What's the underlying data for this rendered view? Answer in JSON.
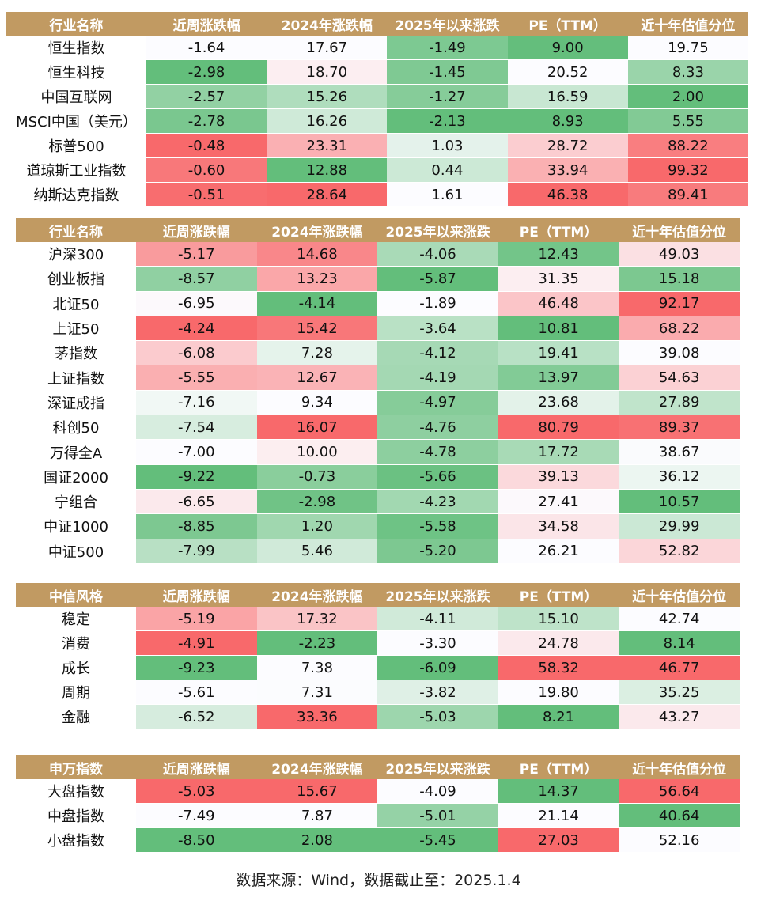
{
  "colors": {
    "header": "#c19a62",
    "low": "#63be7b",
    "mid": "#fcfcff",
    "high": "#f8696b"
  },
  "chart_data": {
    "type": "table",
    "column_scales": [
      "3color",
      "3color",
      "2color-green",
      "3color",
      "3color"
    ],
    "tables": [
      {
        "headers": [
          "行业名称",
          "近周涨跌幅",
          "2024年涨跌幅",
          "2025年以来涨跌",
          "PE（TTM）",
          "近十年估值分位"
        ],
        "rows": [
          [
            "恒生指数",
            "-1.64",
            "17.67",
            "-1.49",
            "9.00",
            "19.75"
          ],
          [
            "恒生科技",
            "-2.98",
            "18.70",
            "-1.45",
            "20.52",
            "8.33"
          ],
          [
            "中国互联网",
            "-2.57",
            "15.26",
            "-1.27",
            "16.59",
            "2.00"
          ],
          [
            "MSCI中国（美元）",
            "-2.78",
            "16.26",
            "-2.13",
            "8.93",
            "5.55"
          ],
          [
            "标普500",
            "-0.48",
            "23.31",
            "1.03",
            "28.72",
            "88.22"
          ],
          [
            "道琼斯工业指数",
            "-0.60",
            "12.88",
            "0.44",
            "33.94",
            "99.32"
          ],
          [
            "纳斯达克指数",
            "-0.51",
            "28.64",
            "1.61",
            "46.38",
            "89.41"
          ]
        ]
      },
      {
        "headers": [
          "行业名称",
          "近周涨跌幅",
          "2024年涨跌幅",
          "2025年以来涨跌",
          "PE（TTM）",
          "近十年估值分位"
        ],
        "rows": [
          [
            "沪深300",
            "-5.17",
            "14.68",
            "-4.06",
            "12.43",
            "49.03"
          ],
          [
            "创业板指",
            "-8.57",
            "13.23",
            "-5.87",
            "31.35",
            "15.18"
          ],
          [
            "北证50",
            "-6.95",
            "-4.14",
            "-1.89",
            "46.48",
            "92.17"
          ],
          [
            "上证50",
            "-4.24",
            "15.42",
            "-3.64",
            "10.81",
            "68.22"
          ],
          [
            "茅指数",
            "-6.08",
            "7.28",
            "-4.12",
            "19.41",
            "39.08"
          ],
          [
            "上证指数",
            "-5.55",
            "12.67",
            "-4.19",
            "13.97",
            "54.63"
          ],
          [
            "深证成指",
            "-7.16",
            "9.34",
            "-4.97",
            "23.68",
            "27.89"
          ],
          [
            "科创50",
            "-7.54",
            "16.07",
            "-4.76",
            "80.79",
            "89.37"
          ],
          [
            "万得全A",
            "-7.00",
            "10.00",
            "-4.78",
            "17.72",
            "38.67"
          ],
          [
            "国证2000",
            "-9.22",
            "-0.73",
            "-5.66",
            "39.13",
            "36.12"
          ],
          [
            "宁组合",
            "-6.65",
            "-2.98",
            "-4.23",
            "27.41",
            "10.57"
          ],
          [
            "中证1000",
            "-8.85",
            "1.20",
            "-5.58",
            "34.58",
            "29.99"
          ],
          [
            "中证500",
            "-7.99",
            "5.46",
            "-5.20",
            "26.21",
            "52.82"
          ]
        ]
      },
      {
        "headers": [
          "中信风格",
          "近周涨跌幅",
          "2024年涨跌幅",
          "2025年以来涨跌",
          "PE（TTM）",
          "近十年估值分位"
        ],
        "rows": [
          [
            "稳定",
            "-5.19",
            "17.32",
            "-4.11",
            "15.10",
            "42.74"
          ],
          [
            "消费",
            "-4.91",
            "-2.23",
            "-3.30",
            "24.78",
            "8.14"
          ],
          [
            "成长",
            "-9.23",
            "7.38",
            "-6.09",
            "58.32",
            "46.77"
          ],
          [
            "周期",
            "-5.61",
            "7.31",
            "-3.82",
            "19.80",
            "35.25"
          ],
          [
            "金融",
            "-6.52",
            "33.36",
            "-5.03",
            "8.21",
            "43.27"
          ]
        ]
      },
      {
        "headers": [
          "申万指数",
          "近周涨跌幅",
          "2024年涨跌幅",
          "2025年以来涨跌",
          "PE（TTM）",
          "近十年估值分位"
        ],
        "rows": [
          [
            "大盘指数",
            "-5.03",
            "15.67",
            "-4.09",
            "14.37",
            "56.64"
          ],
          [
            "中盘指数",
            "-7.49",
            "7.87",
            "-5.01",
            "21.14",
            "40.64"
          ],
          [
            "小盘指数",
            "-8.50",
            "2.08",
            "-5.45",
            "27.03",
            "52.16"
          ]
        ]
      }
    ]
  },
  "footer": "数据来源：Wind，数据截止至：2025.1.4"
}
